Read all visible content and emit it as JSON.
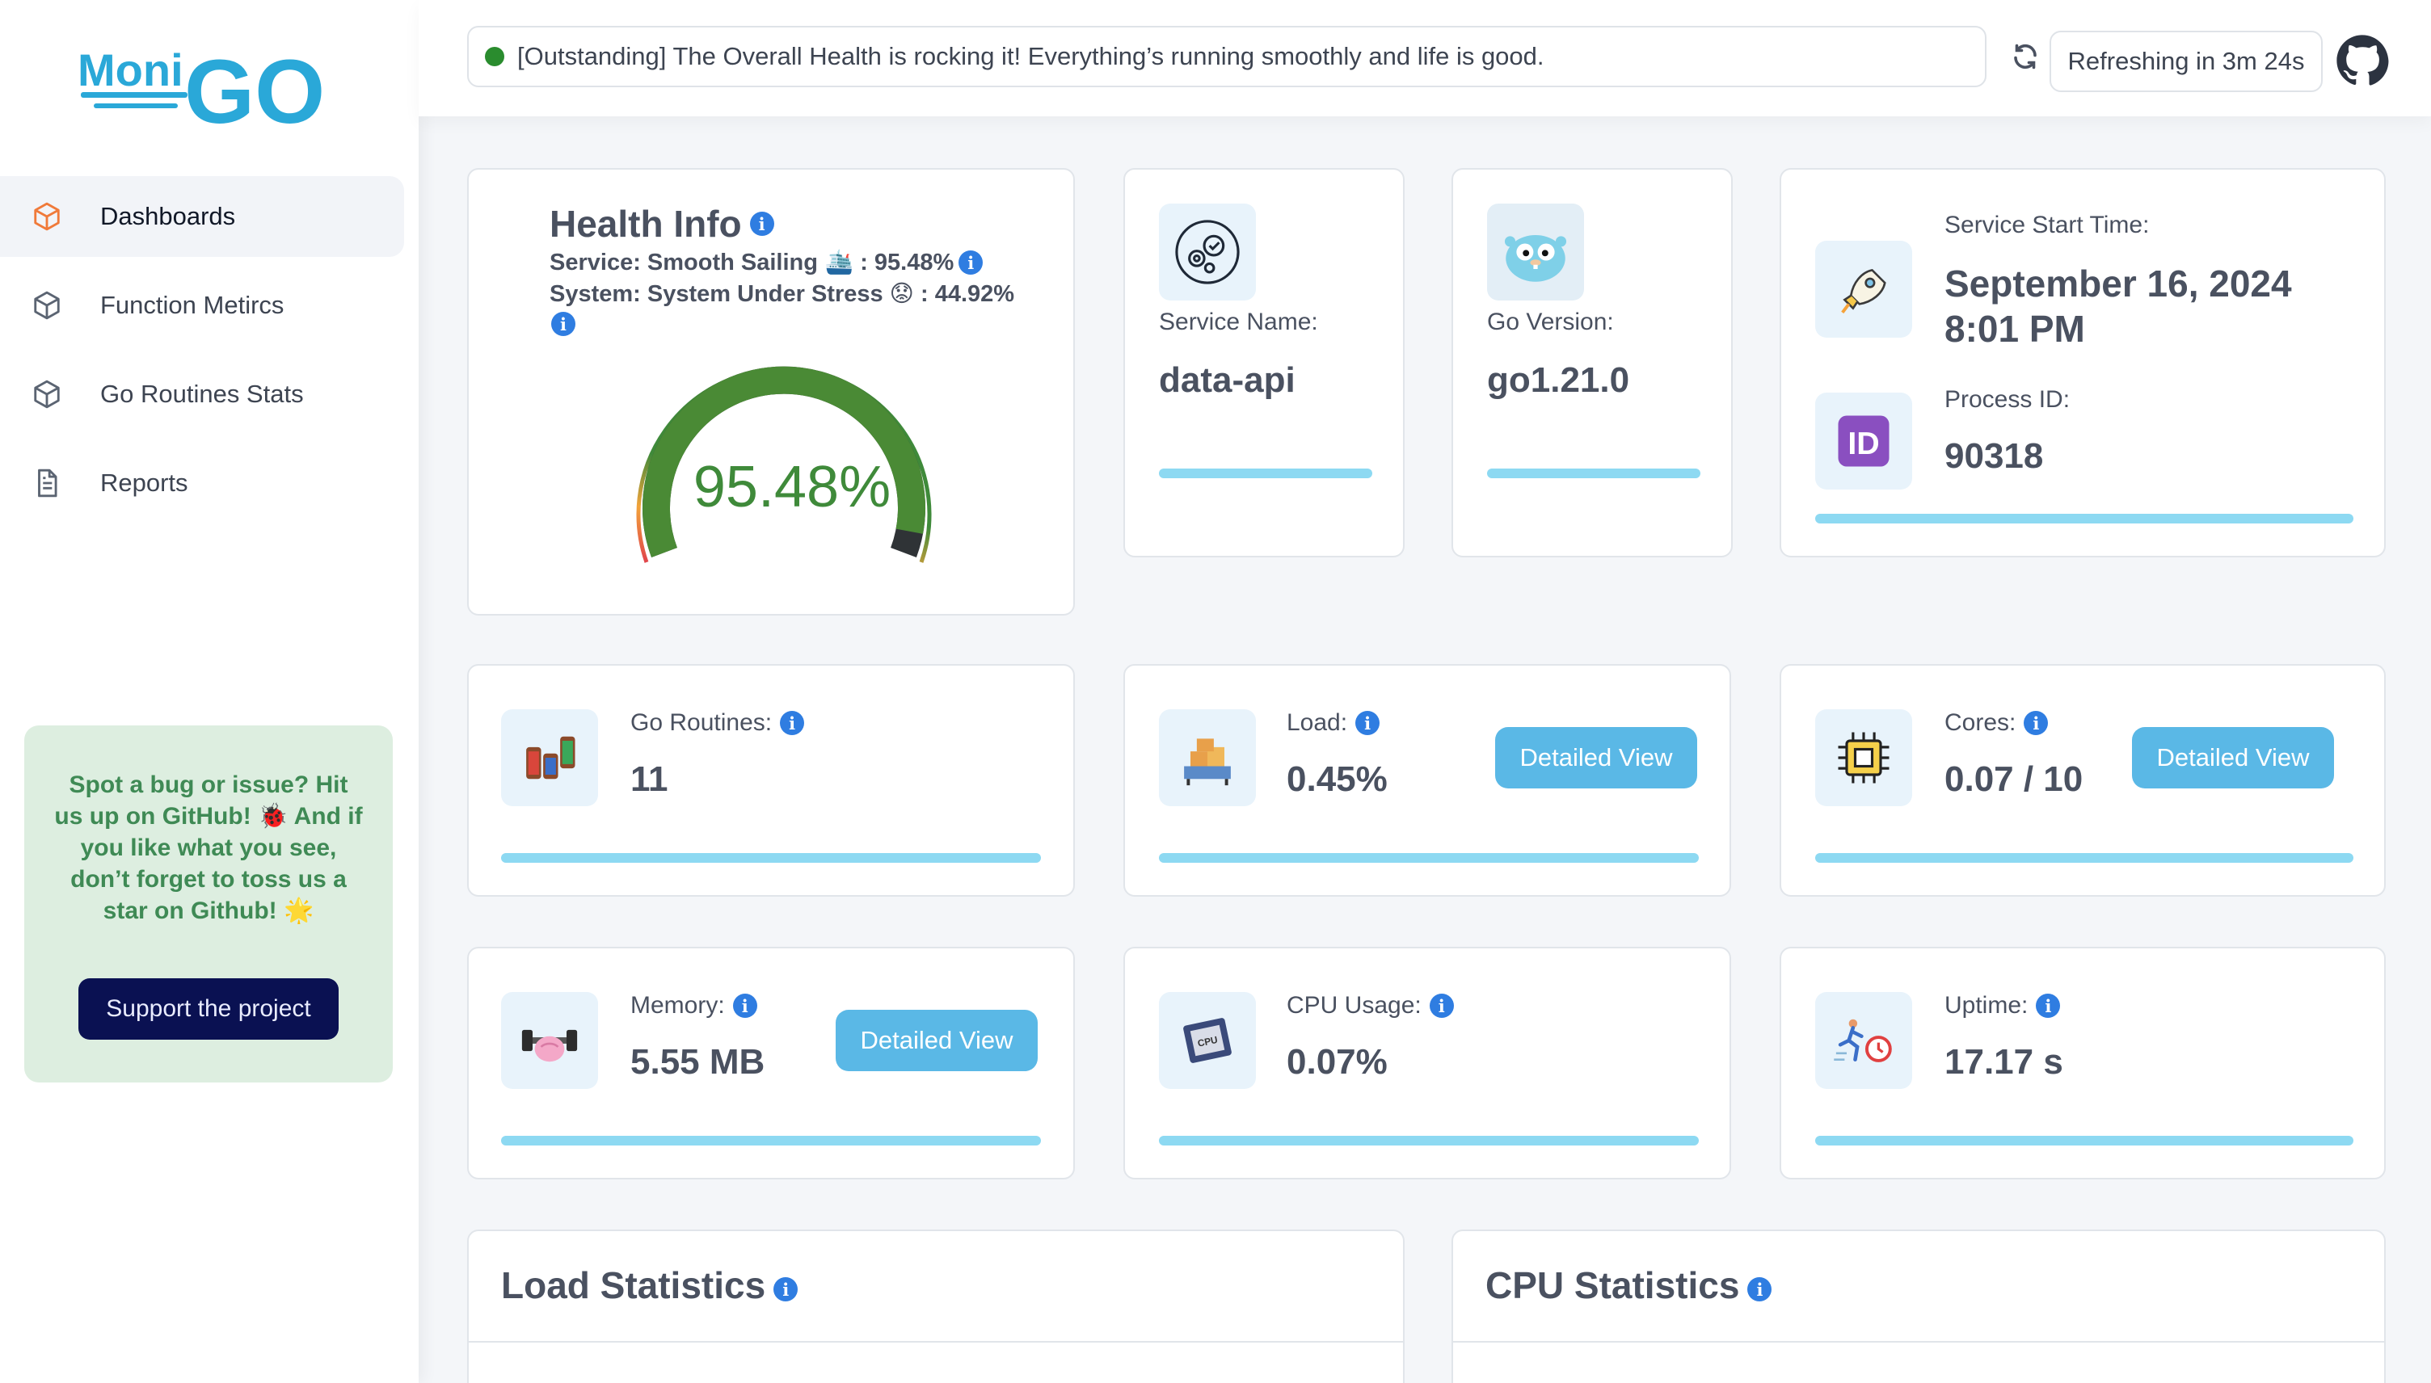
{
  "app": {
    "logo_text_1": "Moni",
    "logo_text_2": "GO"
  },
  "sidebar": {
    "items": [
      {
        "label": "Dashboards",
        "icon": "cube-icon",
        "active": true
      },
      {
        "label": "Function Metircs",
        "icon": "cube-icon"
      },
      {
        "label": "Go Routines Stats",
        "icon": "cube-icon"
      },
      {
        "label": "Reports",
        "icon": "document-icon"
      }
    ],
    "promo": {
      "text": "Spot a bug or issue? Hit us up on GitHub! 🐞 And if you like what you see, don’t forget to toss us a star on Github! 🌟",
      "button_label": "Support the project"
    }
  },
  "header": {
    "status_text": "[Outstanding] The Overall Health is rocking it! Everything’s running smoothly and life is good.",
    "status_color": "#2a8c2e",
    "refresh_text": "Refreshing in 3m 24s"
  },
  "health": {
    "title": "Health Info",
    "service_line": "Service: Smooth Sailing 🛳️ : 95.48%",
    "system_line": "System: System Under Stress 😟 : 44.92%",
    "gauge_value": "95.48%",
    "gauge_fraction": 0.9548
  },
  "service": {
    "label": "Service Name:",
    "value": "data-api"
  },
  "go_version": {
    "label": "Go Version:",
    "value": "go1.21.0"
  },
  "start": {
    "label": "Service Start Time:",
    "value_line1": "September 16, 2024",
    "value_line2": "8:01 PM",
    "pid_label": "Process ID:",
    "pid_value": "90318"
  },
  "routines": {
    "label": "Go Routines:",
    "value": "11"
  },
  "load": {
    "label": "Load:",
    "value": "0.45%",
    "button": "Detailed View"
  },
  "cores": {
    "label": "Cores:",
    "value": "0.07 / 10",
    "button": "Detailed View"
  },
  "memory": {
    "label": "Memory:",
    "value": "5.55 MB",
    "button": "Detailed View"
  },
  "cpu": {
    "label": "CPU Usage:",
    "value": "0.07%"
  },
  "uptime": {
    "label": "Uptime:",
    "value": "17.17 s"
  },
  "sections": {
    "load_stats": "Load Statistics",
    "cpu_stats": "CPU Statistics"
  }
}
